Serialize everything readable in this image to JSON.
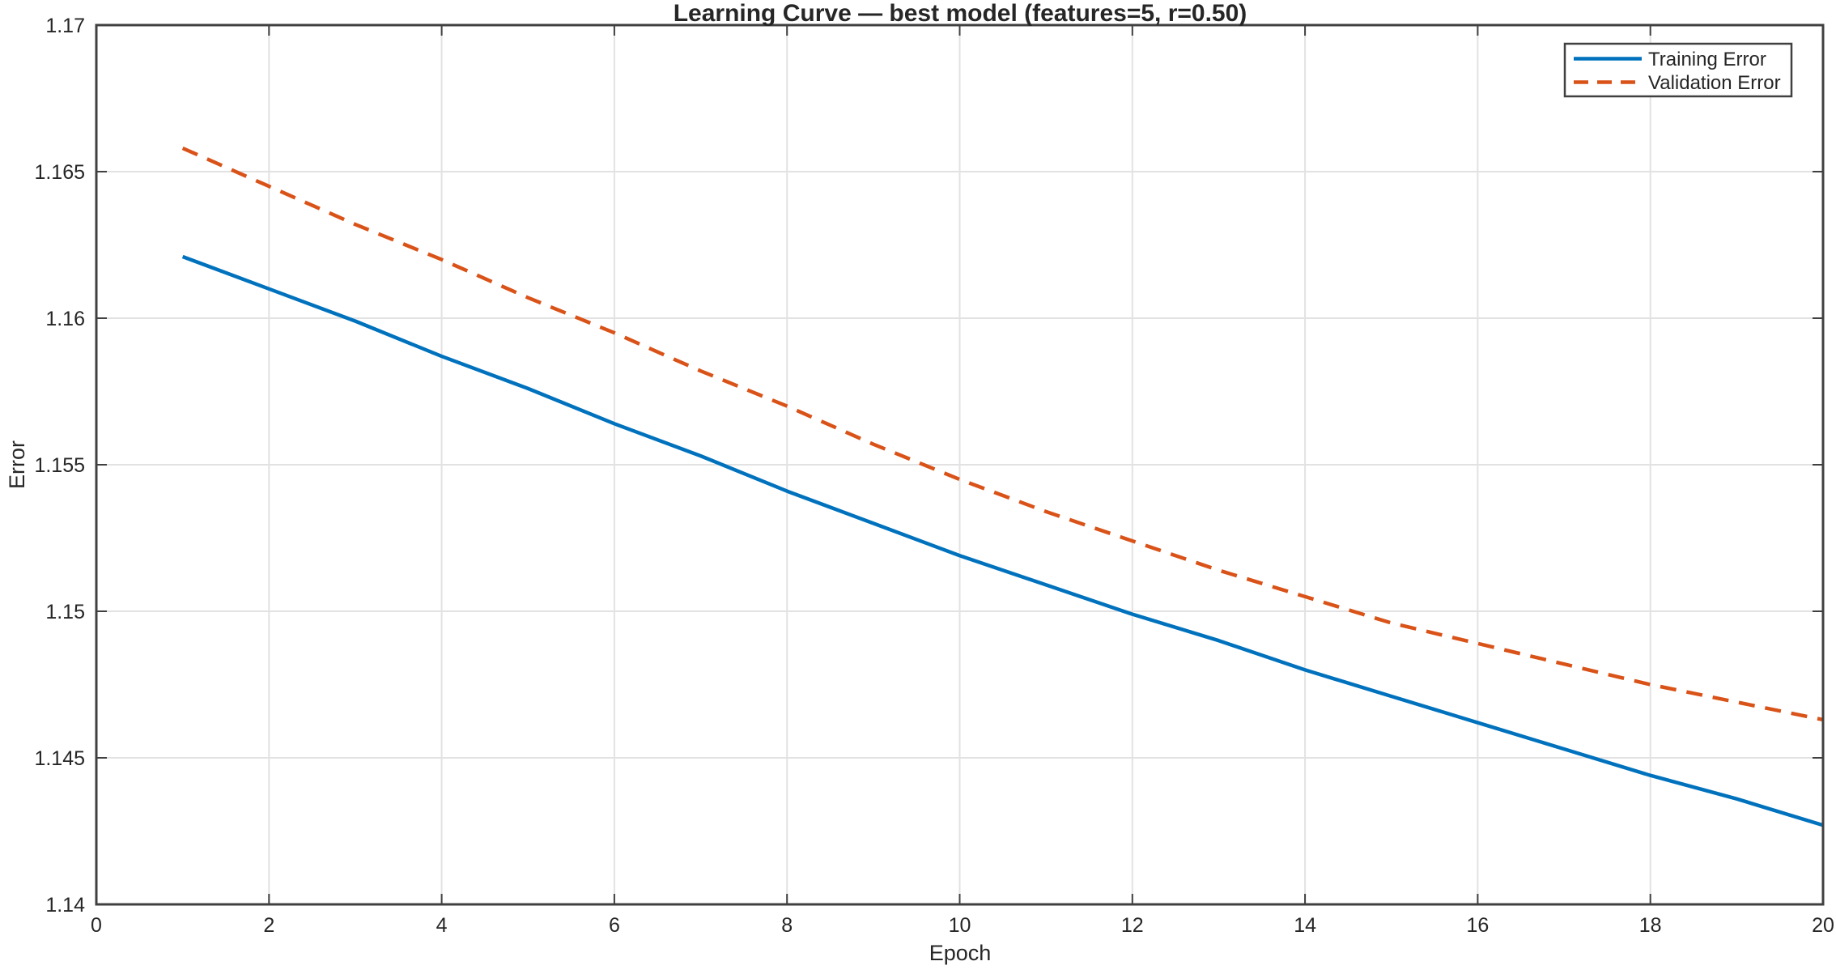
{
  "title": "Learning Curve — best model (features=5, r=0.50)",
  "axes": {
    "xlabel": "Epoch",
    "ylabel": "Error"
  },
  "legend": {
    "position": "top-right",
    "items": [
      {
        "label": "Training Error",
        "style": "solid"
      },
      {
        "label": "Validation Error",
        "style": "dashed"
      }
    ]
  },
  "colors": {
    "training": "#0072BD",
    "validation": "#D95319",
    "grid": "#E2E2E2",
    "axis_box": "#404040",
    "text": "#262626",
    "background": "#FFFFFF"
  },
  "chart_data": {
    "type": "line",
    "title": "Learning Curve — best model (features=5, r=0.50)",
    "xlabel": "Epoch",
    "ylabel": "Error",
    "xlim": [
      0,
      20
    ],
    "ylim": [
      1.14,
      1.17
    ],
    "grid": true,
    "legend_position": "top-right",
    "x_ticks": [
      0,
      2,
      4,
      6,
      8,
      10,
      12,
      14,
      16,
      18,
      20
    ],
    "x_tick_labels": [
      "0",
      "2",
      "4",
      "6",
      "8",
      "10",
      "12",
      "14",
      "16",
      "18",
      "20"
    ],
    "y_ticks": [
      1.14,
      1.145,
      1.15,
      1.155,
      1.16,
      1.165,
      1.17
    ],
    "y_tick_labels": [
      "1.14",
      "1.145",
      "1.15",
      "1.155",
      "1.16",
      "1.165",
      "1.17"
    ],
    "x": [
      1,
      2,
      3,
      4,
      5,
      6,
      7,
      8,
      9,
      10,
      11,
      12,
      13,
      14,
      15,
      16,
      17,
      18,
      19,
      20
    ],
    "series": [
      {
        "name": "Training Error",
        "color": "#0072BD",
        "style": "solid",
        "values": [
          1.1621,
          1.161,
          1.1599,
          1.1587,
          1.1576,
          1.1564,
          1.1553,
          1.1541,
          1.153,
          1.1519,
          1.1509,
          1.1499,
          1.149,
          1.148,
          1.1471,
          1.1462,
          1.1453,
          1.1444,
          1.1436,
          1.1427
        ]
      },
      {
        "name": "Validation Error",
        "color": "#D95319",
        "style": "dashed",
        "values": [
          1.1658,
          1.1645,
          1.1632,
          1.162,
          1.1607,
          1.1595,
          1.1582,
          1.157,
          1.1557,
          1.1545,
          1.1534,
          1.1524,
          1.1514,
          1.1505,
          1.1496,
          1.1489,
          1.1482,
          1.1475,
          1.1469,
          1.1463
        ]
      }
    ]
  }
}
